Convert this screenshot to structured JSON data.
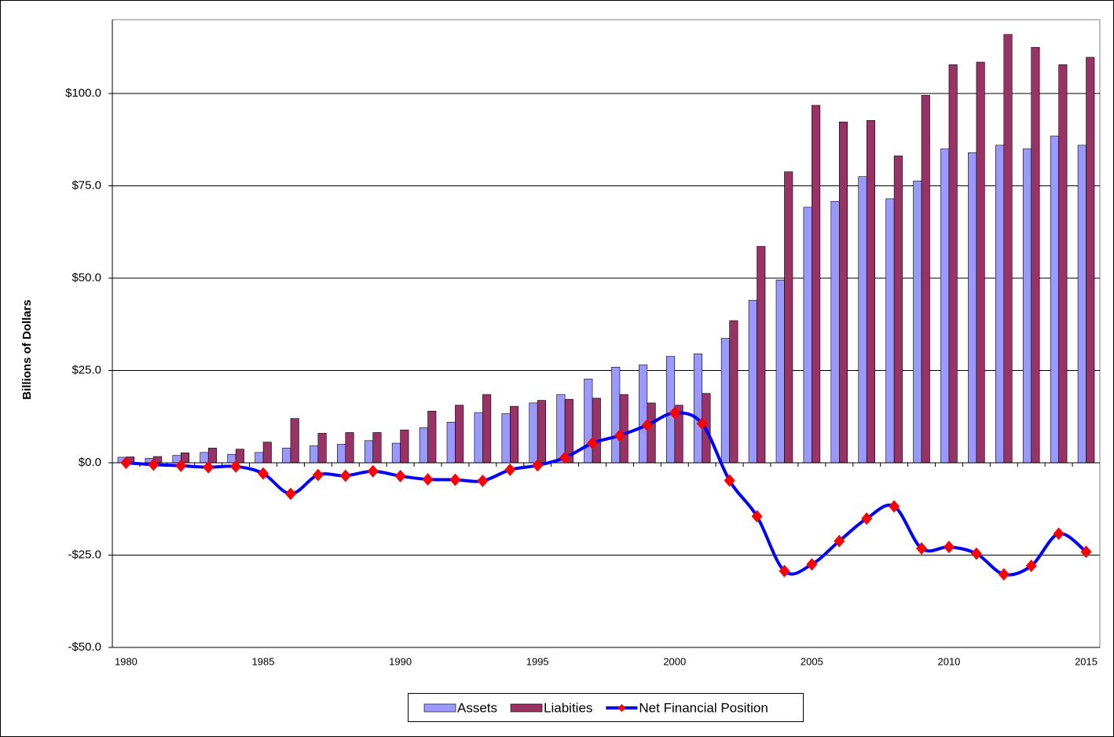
{
  "chart_data": {
    "type": "bar",
    "y_label": "Billions of Dollars",
    "categories": [
      "1980",
      null,
      null,
      null,
      null,
      "1985",
      null,
      null,
      null,
      null,
      "1990",
      null,
      null,
      null,
      null,
      "1995",
      null,
      null,
      null,
      null,
      "2000",
      null,
      null,
      null,
      null,
      "2005",
      null,
      null,
      null,
      null,
      "2010",
      null,
      null,
      null,
      null,
      "2015"
    ],
    "series": [
      {
        "name": "Assets",
        "type": "bar",
        "color": "#9999ff",
        "values": [
          1.5,
          1.2,
          2.0,
          2.8,
          2.3,
          2.8,
          4.0,
          4.6,
          5.0,
          6.0,
          5.3,
          9.5,
          11.0,
          13.6,
          13.3,
          16.2,
          18.5,
          22.7,
          25.9,
          26.5,
          28.8,
          29.5,
          33.7,
          44.0,
          49.5,
          69.2,
          70.8,
          77.5,
          71.5,
          76.3,
          85.0,
          84.0,
          86.0,
          85.0,
          88.5,
          86.0
        ]
      },
      {
        "name": "Liabities",
        "type": "bar",
        "color": "#993366",
        "values": [
          1.6,
          1.7,
          2.7,
          4.0,
          3.7,
          5.6,
          12.0,
          8.0,
          8.2,
          8.2,
          8.9,
          14.0,
          15.6,
          18.5,
          15.3,
          16.9,
          17.2,
          17.5,
          18.5,
          16.2,
          15.6,
          18.8,
          38.5,
          58.6,
          78.8,
          96.8,
          92.3,
          92.7,
          83.1,
          99.5,
          107.8,
          108.5,
          116.0,
          112.5,
          107.8,
          109.8
        ]
      },
      {
        "name": "Net Financial Position",
        "type": "line",
        "color": "#0000ff",
        "marker_color": "#ff0000",
        "values": [
          0,
          -0.5,
          -0.8,
          -1.2,
          -1.0,
          -2.9,
          -8.4,
          -3.3,
          -3.5,
          -2.3,
          -3.6,
          -4.5,
          -4.6,
          -4.9,
          -1.9,
          -0.7,
          1.4,
          5.3,
          7.4,
          10.2,
          13.5,
          10.6,
          -4.8,
          -14.5,
          -29.3,
          -27.5,
          -21.2,
          -15.1,
          -11.8,
          -23.2,
          -22.8,
          -24.6,
          -30.2,
          -27.9,
          -19.2,
          -24.1
        ]
      }
    ],
    "ylim": [
      -50,
      120
    ],
    "yticks": [
      {
        "value": -50,
        "label": "-$50.0"
      },
      {
        "value": -25,
        "label": "-$25.0"
      },
      {
        "value": 0,
        "label": "$0.0"
      },
      {
        "value": 25,
        "label": "$25.0"
      },
      {
        "value": 50,
        "label": "$50.0"
      },
      {
        "value": 75,
        "label": "$75.0"
      },
      {
        "value": 100,
        "label": "$100.0"
      }
    ],
    "grid": true,
    "legend": "bottom"
  }
}
